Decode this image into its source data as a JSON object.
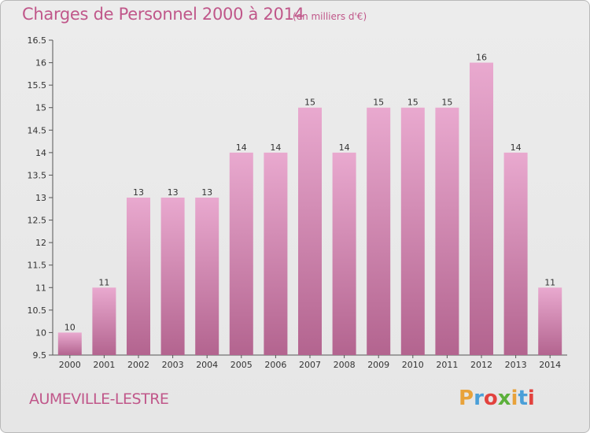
{
  "header": {
    "title": "Charges de Personnel 2000 à 2014",
    "subtitle": "(en milliers d'€)"
  },
  "footer": {
    "commune": "AUMEVILLE-LESTRE",
    "logo_letters": [
      "P",
      "r",
      "o",
      "x",
      "i",
      "t",
      "i"
    ],
    "logo_colors": [
      "#e8a23a",
      "#4a9fd8",
      "#e2423e",
      "#5cb03b",
      "#e8a23a",
      "#4a9fd8",
      "#e2423e"
    ]
  },
  "chart_data": {
    "type": "bar",
    "categories": [
      "2000",
      "2001",
      "2002",
      "2003",
      "2004",
      "2005",
      "2006",
      "2007",
      "2008",
      "2009",
      "2010",
      "2011",
      "2012",
      "2013",
      "2014"
    ],
    "values": [
      10,
      11,
      13,
      13,
      13,
      14,
      14,
      15,
      14,
      15,
      15,
      15,
      16,
      14,
      11
    ],
    "ylim": [
      9.5,
      16.5
    ],
    "yticks": [
      "9.5",
      "10",
      "10.5",
      "11",
      "11.5",
      "12",
      "12.5",
      "13",
      "13.5",
      "14",
      "14.5",
      "15",
      "15.5",
      "16",
      "16.5"
    ],
    "bar_color": "#c97aa8",
    "grid": false,
    "title": "Charges de Personnel 2000 à 2014",
    "xlabel": "",
    "ylabel": ""
  }
}
